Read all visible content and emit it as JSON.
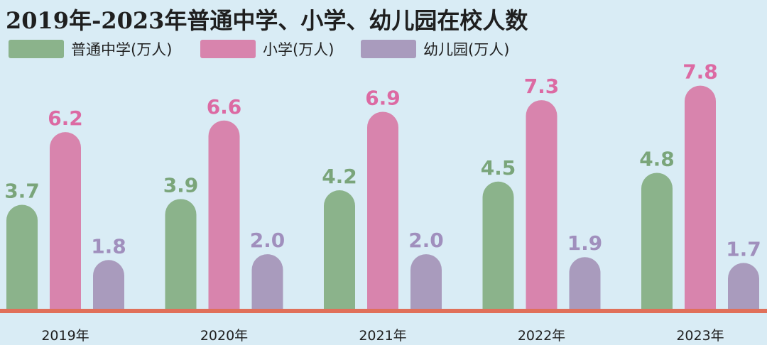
{
  "chart_data": {
    "type": "bar",
    "title": "2019年-2023年普通中学、小学、幼儿园在校人数",
    "categories": [
      "2019年",
      "2020年",
      "2021年",
      "2022年",
      "2023年"
    ],
    "series": [
      {
        "name": "普通中学(万人)",
        "values": [
          3.7,
          3.9,
          4.2,
          4.5,
          4.8
        ],
        "color": "#8bb38b",
        "label_color": "#7aa57a"
      },
      {
        "name": "小学(万人)",
        "values": [
          6.2,
          6.6,
          6.9,
          7.3,
          7.8
        ],
        "color": "#d884ad",
        "label_color": "#dc6aa3"
      },
      {
        "name": "幼儿园(万人)",
        "values": [
          1.8,
          2.0,
          2.0,
          1.9,
          1.7
        ],
        "color": "#a99bbd",
        "label_color": "#a08fbd"
      }
    ],
    "ylim": [
      0,
      8.5
    ],
    "grid": false,
    "legend_position": "top-left",
    "baseline_color": "#e0705a"
  }
}
